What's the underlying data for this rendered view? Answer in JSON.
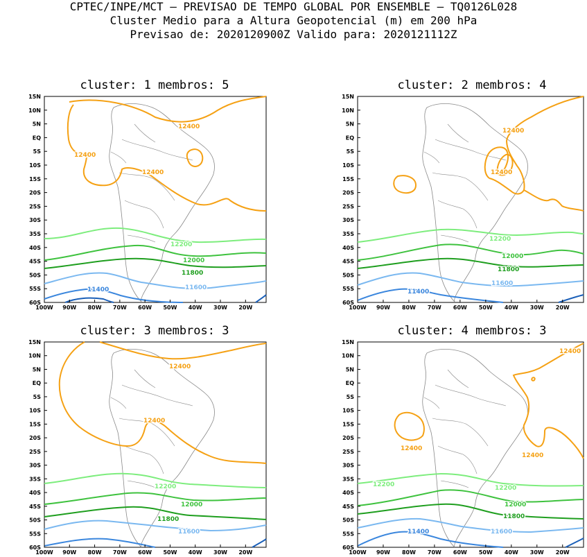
{
  "header": {
    "line1": "CPTEC/INPE/MCT – PREVISAO DE TEMPO GLOBAL POR ENSEMBLE – TQ0126L028",
    "line2": "Cluster Medio para a Altura Geopotencial (m) em 200 hPa",
    "line3": "Previsao de: 2020120900Z   Valido para: 2020121112Z"
  },
  "axes": {
    "lat_labels": [
      "15N",
      "10N",
      "5N",
      "EQ",
      "5S",
      "10S",
      "15S",
      "20S",
      "25S",
      "30S",
      "35S",
      "40S",
      "45S",
      "50S",
      "55S",
      "60S"
    ],
    "lon_labels": [
      "100W",
      "90W",
      "80W",
      "70W",
      "60W",
      "50W",
      "40W",
      "30W",
      "20W"
    ]
  },
  "colors": {
    "c12400": "#f5a114",
    "c12200": "#7ded7d",
    "c12000": "#3ec23e",
    "c11800": "#1e9e1e",
    "c11600": "#7ab8f0",
    "c11400": "#3a86dd",
    "c11200": "#1a5fb8",
    "coast": "#888888"
  },
  "panels": [
    {
      "title": "cluster: 1   membros: 5",
      "labels": {
        "a": "12400",
        "b": "12400",
        "c": "12400",
        "l12200": "12200",
        "l12000": "12000",
        "l11800": "11800",
        "l11600": "11600",
        "l11400": "11400"
      }
    },
    {
      "title": "cluster: 2   membros: 4",
      "labels": {
        "a": "12400",
        "b": "12400",
        "l12200": "12200",
        "l12000": "12000",
        "l11800": "11800",
        "l11600": "11600",
        "l11400": "11400"
      }
    },
    {
      "title": "cluster: 3   membros: 3",
      "labels": {
        "a": "12400",
        "b": "12400",
        "l12200": "12200",
        "l12000": "12000",
        "l11800": "11800",
        "l11600": "11600"
      }
    },
    {
      "title": "cluster: 4   membros: 3",
      "labels": {
        "a": "12400",
        "b": "12400",
        "c": "12400",
        "l12200a": "12200",
        "l12200": "12200",
        "l12000": "12000",
        "l11800": "11800",
        "l11600": "11600",
        "l11400": "11400"
      }
    }
  ]
}
